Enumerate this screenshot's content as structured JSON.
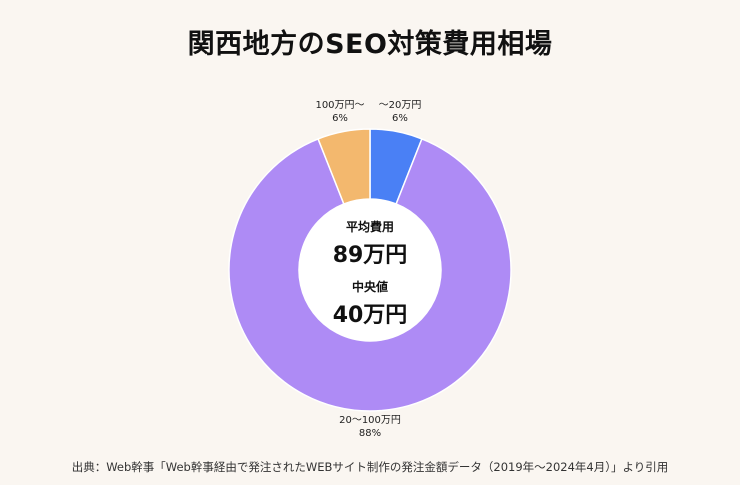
{
  "chart_data": {
    "type": "pie",
    "title": "関西地方のSEO対策費用相場",
    "categories": [
      "〜20万円",
      "20〜100万円",
      "100万円〜"
    ],
    "values": [
      6,
      88,
      6
    ],
    "percent_labels": [
      "6%",
      "88%",
      "6%"
    ],
    "colors": [
      "#4a80f5",
      "#ae8bf5",
      "#f3b86e"
    ],
    "center": {
      "average_label": "平均費用",
      "average_value": "89万円",
      "median_label": "中央値",
      "median_value": "40万円"
    }
  },
  "source": "出典：Web幹事「Web幹事経由で発注されたWEBサイト制作の発注金額データ（2019年〜2024年4月）」より引用"
}
